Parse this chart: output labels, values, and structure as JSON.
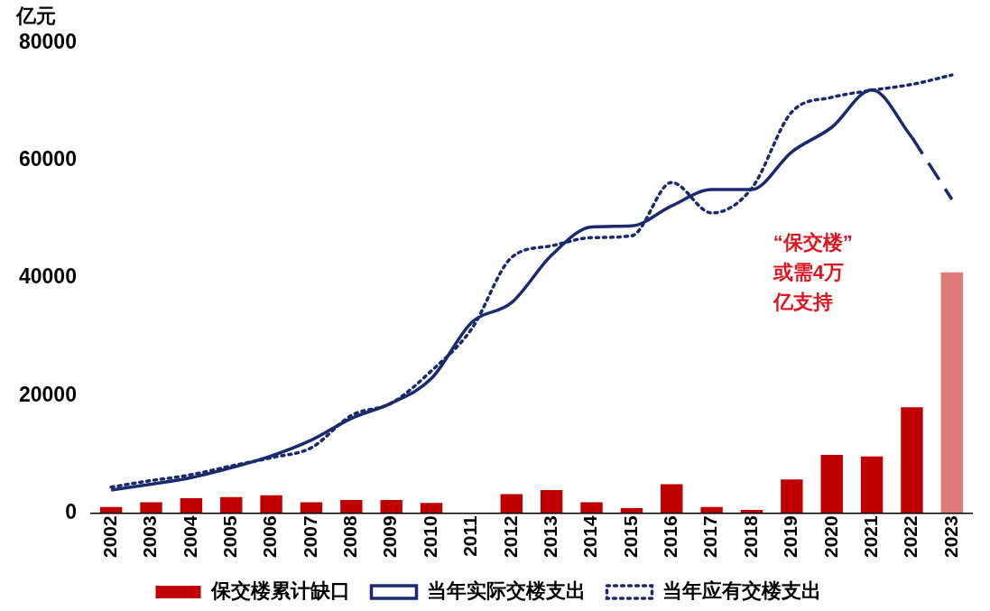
{
  "chart_data": {
    "type": "bar",
    "ylabel": "亿元",
    "categories": [
      "2002",
      "2003",
      "2004",
      "2005",
      "2006",
      "2007",
      "2008",
      "2009",
      "2010",
      "2011",
      "2012",
      "2013",
      "2014",
      "2015",
      "2016",
      "2017",
      "2018",
      "2019",
      "2020",
      "2021",
      "2022",
      "2023"
    ],
    "series": [
      {
        "name": "保交楼累计缺口",
        "color": "#c00000",
        "values": [
          1000,
          1800,
          2500,
          2700,
          3000,
          1800,
          2200,
          2200,
          1700,
          0,
          3200,
          3900,
          1800,
          800,
          4900,
          1000,
          500,
          5700,
          9900,
          9600,
          18000,
          null
        ]
      },
      {
        "color": "#e07a7a",
        "values": [
          null,
          null,
          null,
          null,
          null,
          null,
          null,
          null,
          null,
          null,
          null,
          null,
          null,
          null,
          null,
          null,
          null,
          null,
          null,
          null,
          null,
          41000
        ]
      },
      {
        "name": "当年实际交楼支出",
        "type": "line",
        "color": "#1a2a6c",
        "line_style": "solid",
        "values": [
          3900,
          4900,
          6000,
          7700,
          9700,
          12400,
          16100,
          18700,
          22900,
          32400,
          35800,
          43900,
          48700,
          48900,
          52300,
          55100,
          55100,
          61500,
          65700,
          72100,
          64000,
          null
        ]
      },
      {
        "type": "line",
        "color": "#1a2a6c",
        "line_style": "dashed",
        "values": [
          null,
          null,
          null,
          null,
          null,
          null,
          null,
          null,
          null,
          null,
          null,
          null,
          null,
          null,
          null,
          null,
          null,
          null,
          null,
          null,
          64000,
          53400
        ]
      },
      {
        "name": "当年应有交楼支出",
        "type": "line",
        "color": "#1a2a6c",
        "line_style": "dotted",
        "values": [
          4400,
          5500,
          6500,
          8000,
          9400,
          11100,
          16600,
          18700,
          24200,
          31300,
          43500,
          45500,
          46900,
          47200,
          56300,
          51100,
          55300,
          68300,
          70800,
          72000,
          73000,
          74600
        ]
      }
    ],
    "ylim": [
      0,
      80000
    ],
    "yticks": [
      0,
      20000,
      40000,
      60000,
      80000
    ],
    "grid": false,
    "legend": "bottom",
    "marker": "none",
    "annotations": [
      "“保交楼”或需4万亿支持"
    ]
  }
}
